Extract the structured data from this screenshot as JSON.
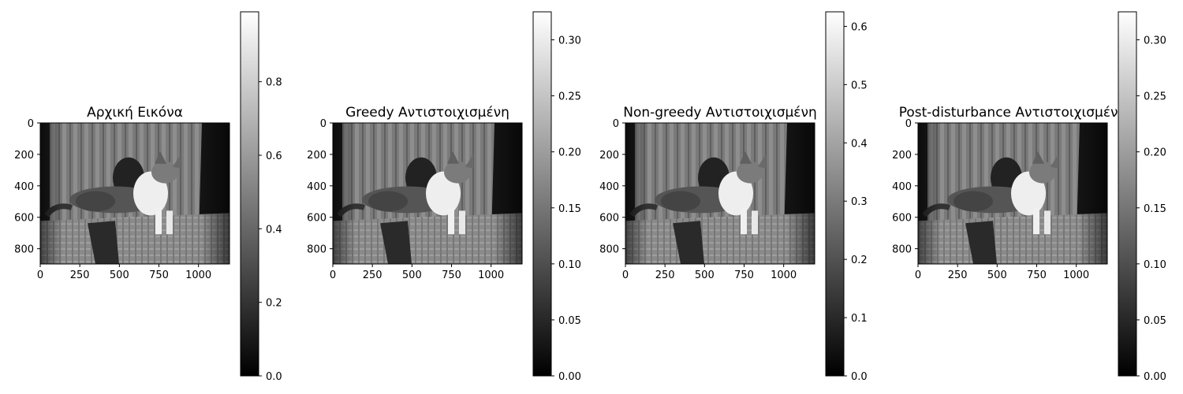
{
  "chart_data": [
    {
      "type": "heatmap",
      "title": "Αρχική Εικόνα",
      "image": "grayscale photo of a cat lying on a sofa",
      "cmap": "gray",
      "x_ticks": [
        0,
        250,
        500,
        750,
        1000
      ],
      "y_ticks": [
        0,
        200,
        400,
        600,
        800
      ],
      "xlim": [
        0,
        1196
      ],
      "ylim": [
        897,
        0
      ],
      "colorbar": {
        "ticks": [
          0.0,
          0.2,
          0.4,
          0.6,
          0.8
        ],
        "tick_labels": [
          "0.0",
          "0.2",
          "0.4",
          "0.6",
          "0.8"
        ],
        "range": [
          0.0,
          0.99
        ]
      }
    },
    {
      "type": "heatmap",
      "title": "Greedy Αντιστοιχισμένη",
      "image": "grayscale photo of a cat lying on a sofa",
      "cmap": "gray",
      "x_ticks": [
        0,
        250,
        500,
        750,
        1000
      ],
      "y_ticks": [
        0,
        200,
        400,
        600,
        800
      ],
      "xlim": [
        0,
        1196
      ],
      "ylim": [
        897,
        0
      ],
      "colorbar": {
        "ticks": [
          0.0,
          0.05,
          0.1,
          0.15,
          0.2,
          0.25,
          0.3
        ],
        "tick_labels": [
          "0.00",
          "0.05",
          "0.10",
          "0.15",
          "0.20",
          "0.25",
          "0.30"
        ],
        "range": [
          0.0,
          0.325
        ]
      }
    },
    {
      "type": "heatmap",
      "title": "Non-greedy Αντιστοιχισμένη",
      "image": "grayscale photo of a cat lying on a sofa",
      "cmap": "gray",
      "x_ticks": [
        0,
        250,
        500,
        750,
        1000
      ],
      "y_ticks": [
        0,
        200,
        400,
        600,
        800
      ],
      "xlim": [
        0,
        1196
      ],
      "ylim": [
        897,
        0
      ],
      "colorbar": {
        "ticks": [
          0.0,
          0.1,
          0.2,
          0.3,
          0.4,
          0.5,
          0.6
        ],
        "tick_labels": [
          "0.0",
          "0.1",
          "0.2",
          "0.3",
          "0.4",
          "0.5",
          "0.6"
        ],
        "range": [
          0.0,
          0.625
        ]
      }
    },
    {
      "type": "heatmap",
      "title": "Post-disturbance Αντιστοιχισμένη",
      "image": "grayscale photo of a cat lying on a sofa",
      "cmap": "gray",
      "x_ticks": [
        0,
        250,
        500,
        750,
        1000
      ],
      "y_ticks": [
        0,
        200,
        400,
        600,
        800
      ],
      "xlim": [
        0,
        1196
      ],
      "ylim": [
        897,
        0
      ],
      "colorbar": {
        "ticks": [
          0.0,
          0.05,
          0.1,
          0.15,
          0.2,
          0.25,
          0.3
        ],
        "tick_labels": [
          "0.00",
          "0.05",
          "0.10",
          "0.15",
          "0.20",
          "0.25",
          "0.30"
        ],
        "range": [
          0.0,
          0.325
        ]
      }
    }
  ]
}
